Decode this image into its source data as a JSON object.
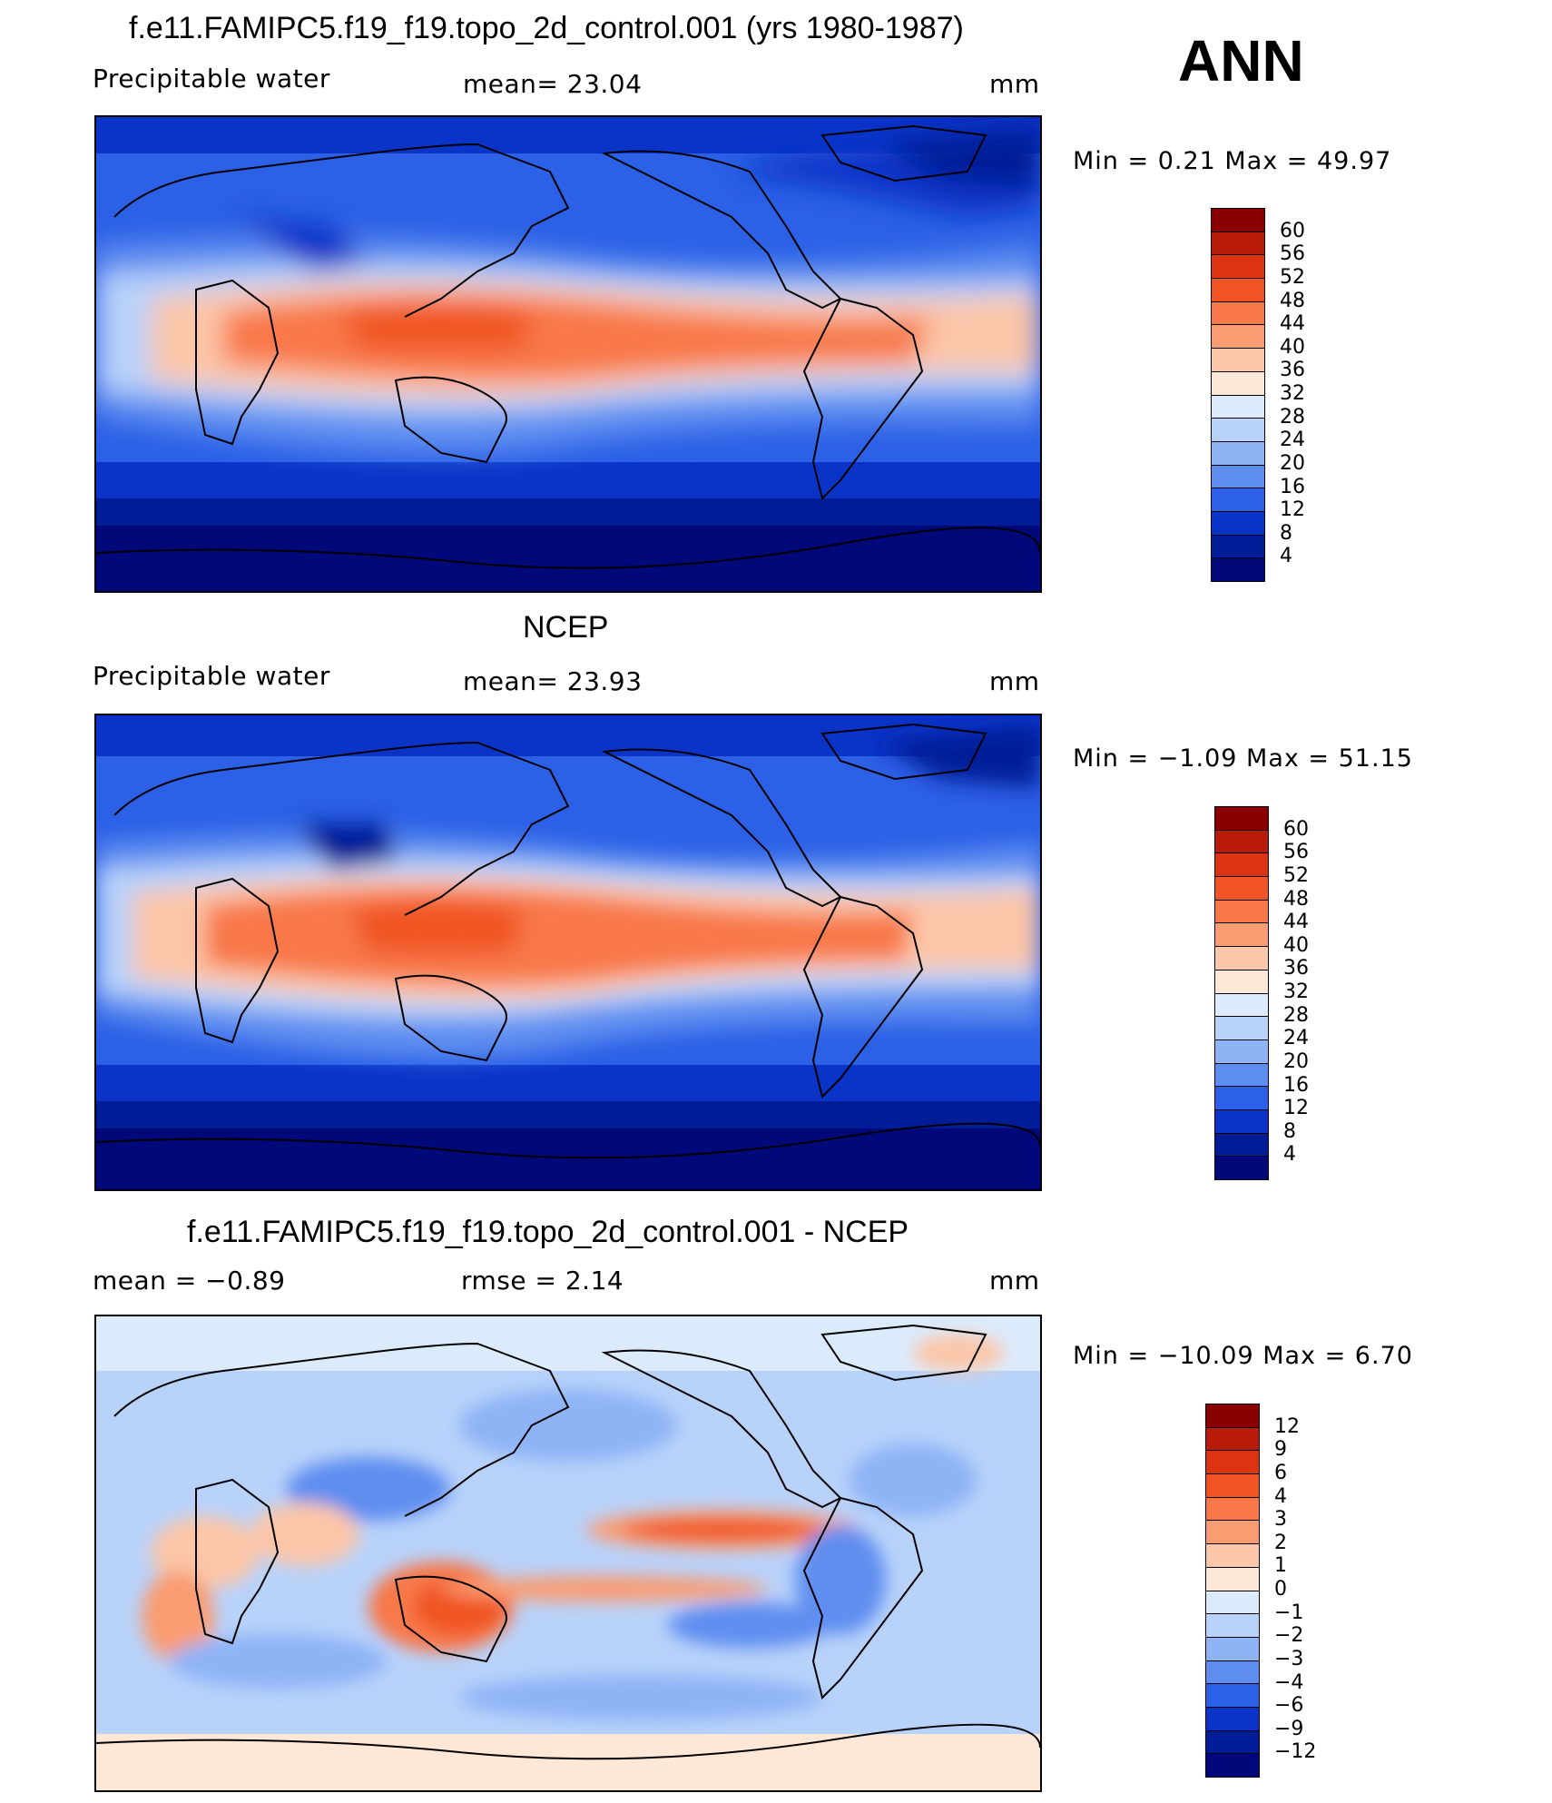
{
  "season": "ANN",
  "panels": [
    {
      "title": "f.e11.FAMIPC5.f19_f19.topo_2d_control.001 (yrs 1980-1987)",
      "left_label": "Precipitable  water",
      "center_label": "mean=   23.04",
      "units": "mm",
      "minmax": "Min  =     0.21  Max  =    49.97",
      "levels": [
        "60",
        "56",
        "52",
        "48",
        "44",
        "40",
        "36",
        "32",
        "28",
        "24",
        "20",
        "16",
        "12",
        "8",
        "4"
      ]
    },
    {
      "title": "NCEP",
      "left_label": "Precipitable  water",
      "center_label": "mean=   23.93",
      "units": "mm",
      "minmax": "Min  =   −1.09  Max  =    51.15",
      "levels": [
        "60",
        "56",
        "52",
        "48",
        "44",
        "40",
        "36",
        "32",
        "28",
        "24",
        "20",
        "16",
        "12",
        "8",
        "4"
      ]
    },
    {
      "title": "f.e11.FAMIPC5.f19_f19.topo_2d_control.001 - NCEP",
      "left_label": "mean  =    −0.89",
      "center_label": "rmse  =     2.14",
      "units": "mm",
      "minmax": "Min  = −10.09  Max  =     6.70",
      "levels": [
        "12",
        "9",
        "6",
        "4",
        "3",
        "2",
        "1",
        "0",
        "−1",
        "−2",
        "−3",
        "−4",
        "−6",
        "−9",
        "−12"
      ]
    }
  ],
  "colors": {
    "abs_scale": [
      "#8a0000",
      "#b81c08",
      "#dc3410",
      "#f05424",
      "#f8784a",
      "#fa9c72",
      "#fcc6a8",
      "#fde8d8",
      "#dcebfc",
      "#b8d2fa",
      "#8eb4f6",
      "#5e8ef0",
      "#2c60e6",
      "#0a34c8",
      "#001c96",
      "#00087a"
    ],
    "diff_scale": [
      "#8a0000",
      "#b81c08",
      "#dc3410",
      "#f05424",
      "#f8784a",
      "#fa9c72",
      "#fcc6a8",
      "#fde8d8",
      "#dcebfc",
      "#b8d2fa",
      "#8eb4f6",
      "#5e8ef0",
      "#2c60e6",
      "#0a34c8",
      "#001c96",
      "#00087a"
    ]
  }
}
